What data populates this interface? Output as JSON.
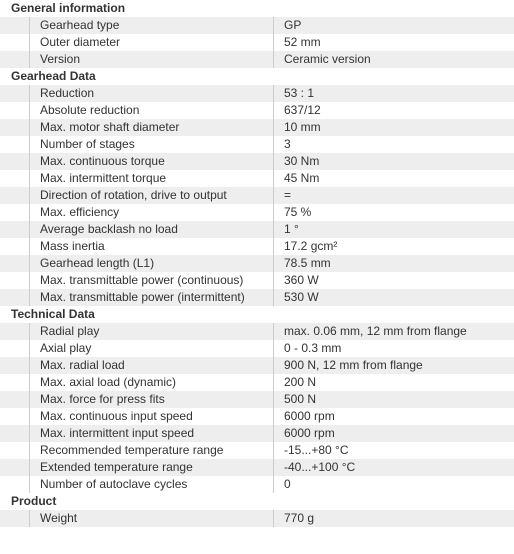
{
  "sections": [
    {
      "title": "General information",
      "rows": [
        {
          "label": "Gearhead type",
          "value": "GP"
        },
        {
          "label": "Outer diameter",
          "value": "52 mm"
        },
        {
          "label": "Version",
          "value": "Ceramic version"
        }
      ]
    },
    {
      "title": "Gearhead Data",
      "rows": [
        {
          "label": "Reduction",
          "value": "53 : 1"
        },
        {
          "label": "Absolute reduction",
          "value": "637/12"
        },
        {
          "label": "Max. motor shaft diameter",
          "value": "10 mm"
        },
        {
          "label": "Number of stages",
          "value": "3"
        },
        {
          "label": "Max. continuous torque",
          "value": "30 Nm"
        },
        {
          "label": "Max. intermittent torque",
          "value": "45 Nm"
        },
        {
          "label": "Direction of rotation, drive to output",
          "value": "="
        },
        {
          "label": "Max. efficiency",
          "value": "75 %"
        },
        {
          "label": "Average backlash no load",
          "value": "1 °"
        },
        {
          "label": "Mass inertia",
          "value": "17.2 gcm²"
        },
        {
          "label": "Gearhead length (L1)",
          "value": "78.5 mm"
        },
        {
          "label": "Max. transmittable power (continuous)",
          "value": "360 W"
        },
        {
          "label": "Max. transmittable power (intermittent)",
          "value": "530 W"
        }
      ]
    },
    {
      "title": "Technical Data",
      "rows": [
        {
          "label": "Radial play",
          "value": "max. 0.06 mm, 12 mm from flange"
        },
        {
          "label": "Axial play",
          "value": "0 - 0.3 mm"
        },
        {
          "label": "Max. radial load",
          "value": "900 N, 12 mm from flange"
        },
        {
          "label": "Max. axial load (dynamic)",
          "value": "200 N"
        },
        {
          "label": "Max. force for press fits",
          "value": "500 N"
        },
        {
          "label": "Max. continuous input speed",
          "value": "6000 rpm"
        },
        {
          "label": "Max. intermittent input speed",
          "value": "6000 rpm"
        },
        {
          "label": "Recommended temperature range",
          "value": "-15...+80 °C"
        },
        {
          "label": "Extended temperature range",
          "value": "-40...+100 °C"
        },
        {
          "label": "Number of autoclave cycles",
          "value": "0"
        }
      ]
    },
    {
      "title": "Product",
      "rows": [
        {
          "label": "Weight",
          "value": "770 g"
        }
      ]
    }
  ]
}
